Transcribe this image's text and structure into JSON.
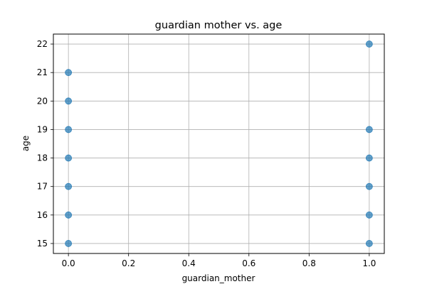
{
  "chart_data": {
    "type": "scatter",
    "title": "guardian mother vs. age",
    "xlabel": "guardian_mother",
    "ylabel": "age",
    "xlim": [
      -0.05,
      1.05
    ],
    "ylim": [
      14.65,
      22.35
    ],
    "xticks": [
      0.0,
      0.2,
      0.4,
      0.6,
      0.8,
      1.0
    ],
    "xtick_labels": [
      "0.0",
      "0.2",
      "0.4",
      "0.6",
      "0.8",
      "1.0"
    ],
    "yticks": [
      15,
      16,
      17,
      18,
      19,
      20,
      21,
      22
    ],
    "ytick_labels": [
      "15",
      "16",
      "17",
      "18",
      "19",
      "20",
      "21",
      "22"
    ],
    "grid": true,
    "legend": "none",
    "point_color": "#1f77b4",
    "series": [
      {
        "x": [
          0,
          0,
          0,
          0,
          0,
          0,
          0,
          1,
          1,
          1,
          1,
          1,
          1
        ],
        "y": [
          15,
          16,
          17,
          18,
          19,
          20,
          21,
          15,
          16,
          17,
          18,
          19,
          22
        ]
      }
    ]
  }
}
